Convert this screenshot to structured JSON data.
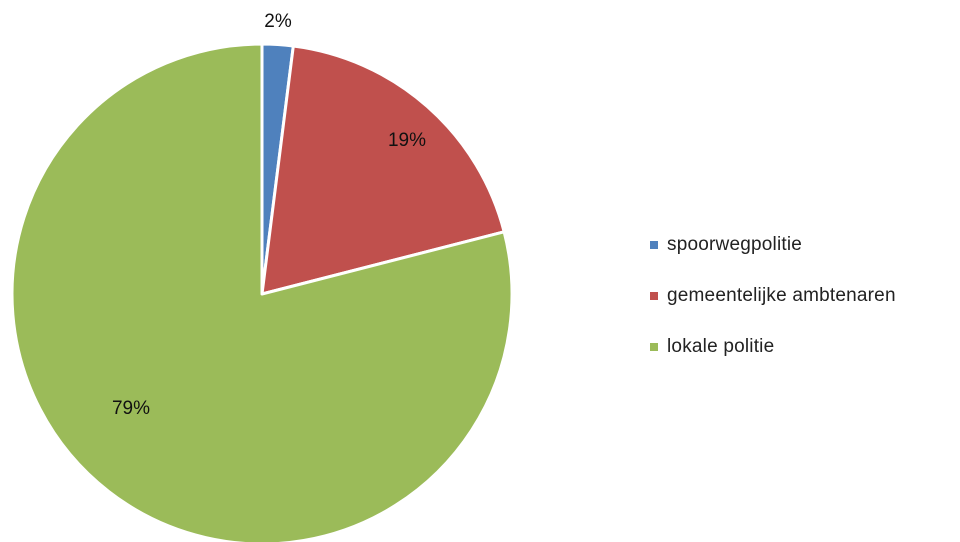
{
  "chart_data": {
    "type": "pie",
    "title": "",
    "categories": [
      "spoorwegpolitie",
      "gemeentelijke ambtenaren",
      "lokale politie"
    ],
    "values": [
      2,
      19,
      79
    ],
    "data_labels": [
      "2%",
      "19%",
      "79%"
    ],
    "colors": [
      "#4f81bd",
      "#c0504d",
      "#9bbb59"
    ],
    "start_angle_deg": 0,
    "direction": "clockwise",
    "legend_position": "right"
  }
}
